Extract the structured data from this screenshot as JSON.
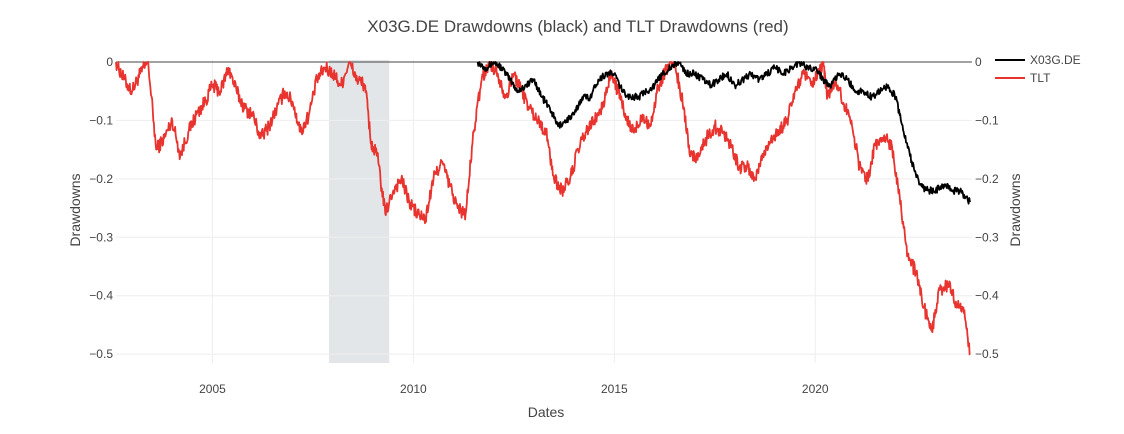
{
  "chart_data": {
    "type": "line",
    "title": "X03G.DE Drawdowns (black) and TLT Drawdowns (red)",
    "xlabel": "Dates",
    "ylabel": "Drawdowns",
    "ylabel_right": "Drawdowns",
    "xlim": [
      2002.6,
      2023.9
    ],
    "ylim": [
      -0.51,
      0.0
    ],
    "x_ticks": [
      {
        "value": 2005,
        "label": "2005"
      },
      {
        "value": 2010,
        "label": "2010"
      },
      {
        "value": 2015,
        "label": "2015"
      },
      {
        "value": 2020,
        "label": "2020"
      }
    ],
    "y_ticks": [
      {
        "value": 0,
        "label": "0"
      },
      {
        "value": -0.1,
        "label": "−0.1"
      },
      {
        "value": -0.2,
        "label": "−0.2"
      },
      {
        "value": -0.3,
        "label": "−0.3"
      },
      {
        "value": -0.4,
        "label": "−0.4"
      },
      {
        "value": -0.5,
        "label": "−0.5"
      }
    ],
    "grid": true,
    "legend_position": "top-right",
    "shaded_regions": [
      {
        "x0": 2007.9,
        "x1": 2009.4,
        "color": "#e3e6e9"
      }
    ],
    "series": [
      {
        "name": "TLT",
        "color": "#e8332e",
        "x": [
          2002.6,
          2002.8,
          2003.0,
          2003.2,
          2003.4,
          2003.6,
          2003.8,
          2004.0,
          2004.2,
          2004.4,
          2004.6,
          2004.8,
          2005.0,
          2005.2,
          2005.4,
          2005.6,
          2005.8,
          2006.0,
          2006.2,
          2006.4,
          2006.6,
          2006.8,
          2007.0,
          2007.2,
          2007.4,
          2007.6,
          2007.8,
          2008.0,
          2008.2,
          2008.4,
          2008.6,
          2008.8,
          2008.95,
          2009.1,
          2009.3,
          2009.5,
          2009.7,
          2009.9,
          2010.1,
          2010.3,
          2010.5,
          2010.7,
          2010.9,
          2011.1,
          2011.3,
          2011.5,
          2011.7,
          2011.9,
          2012.1,
          2012.3,
          2012.5,
          2012.7,
          2012.9,
          2013.1,
          2013.3,
          2013.5,
          2013.7,
          2013.9,
          2014.1,
          2014.3,
          2014.5,
          2014.7,
          2014.9,
          2015.1,
          2015.3,
          2015.5,
          2015.7,
          2015.9,
          2016.1,
          2016.3,
          2016.5,
          2016.7,
          2016.9,
          2017.1,
          2017.3,
          2017.5,
          2017.7,
          2017.9,
          2018.1,
          2018.3,
          2018.5,
          2018.7,
          2018.9,
          2019.1,
          2019.3,
          2019.5,
          2019.7,
          2019.9,
          2020.1,
          2020.2,
          2020.3,
          2020.5,
          2020.7,
          2020.9,
          2021.1,
          2021.3,
          2021.5,
          2021.7,
          2021.9,
          2022.1,
          2022.3,
          2022.5,
          2022.7,
          2022.9,
          2023.1,
          2023.3,
          2023.5,
          2023.7,
          2023.85
        ],
        "values": [
          0.0,
          -0.03,
          -0.05,
          -0.02,
          0.0,
          -0.15,
          -0.13,
          -0.1,
          -0.16,
          -0.12,
          -0.09,
          -0.07,
          -0.04,
          -0.05,
          -0.01,
          -0.05,
          -0.08,
          -0.09,
          -0.13,
          -0.11,
          -0.08,
          -0.05,
          -0.07,
          -0.12,
          -0.09,
          -0.03,
          -0.01,
          -0.02,
          -0.04,
          -0.0,
          -0.03,
          -0.04,
          -0.14,
          -0.16,
          -0.26,
          -0.22,
          -0.2,
          -0.24,
          -0.26,
          -0.27,
          -0.2,
          -0.17,
          -0.21,
          -0.25,
          -0.26,
          -0.12,
          -0.03,
          0.0,
          -0.02,
          -0.06,
          -0.02,
          -0.05,
          -0.08,
          -0.1,
          -0.12,
          -0.2,
          -0.22,
          -0.2,
          -0.15,
          -0.12,
          -0.1,
          -0.08,
          -0.02,
          -0.05,
          -0.1,
          -0.12,
          -0.09,
          -0.11,
          -0.04,
          -0.01,
          0.0,
          -0.07,
          -0.16,
          -0.16,
          -0.13,
          -0.11,
          -0.12,
          -0.14,
          -0.18,
          -0.18,
          -0.2,
          -0.16,
          -0.13,
          -0.12,
          -0.1,
          -0.05,
          -0.02,
          -0.04,
          -0.02,
          0.0,
          -0.06,
          -0.03,
          -0.07,
          -0.1,
          -0.18,
          -0.2,
          -0.14,
          -0.13,
          -0.14,
          -0.23,
          -0.33,
          -0.36,
          -0.42,
          -0.46,
          -0.39,
          -0.38,
          -0.41,
          -0.43,
          -0.5
        ]
      },
      {
        "name": "X03G.DE",
        "color": "#000000",
        "x": [
          2011.6,
          2011.8,
          2012.0,
          2012.2,
          2012.4,
          2012.6,
          2012.8,
          2013.0,
          2013.2,
          2013.4,
          2013.6,
          2013.8,
          2014.0,
          2014.2,
          2014.4,
          2014.6,
          2014.8,
          2015.0,
          2015.2,
          2015.4,
          2015.6,
          2015.8,
          2016.0,
          2016.2,
          2016.4,
          2016.6,
          2016.8,
          2017.0,
          2017.2,
          2017.4,
          2017.6,
          2017.8,
          2018.0,
          2018.2,
          2018.4,
          2018.6,
          2018.8,
          2019.0,
          2019.2,
          2019.4,
          2019.6,
          2019.8,
          2020.0,
          2020.2,
          2020.4,
          2020.6,
          2020.8,
          2021.0,
          2021.2,
          2021.4,
          2021.6,
          2021.8,
          2022.0,
          2022.2,
          2022.4,
          2022.6,
          2022.8,
          2023.0,
          2023.2,
          2023.4,
          2023.6,
          2023.85
        ],
        "values": [
          0.0,
          -0.01,
          0.0,
          -0.01,
          -0.03,
          -0.05,
          -0.04,
          -0.03,
          -0.06,
          -0.08,
          -0.11,
          -0.1,
          -0.09,
          -0.06,
          -0.06,
          -0.03,
          -0.02,
          -0.02,
          -0.05,
          -0.06,
          -0.06,
          -0.05,
          -0.04,
          -0.02,
          -0.01,
          -0.0,
          -0.02,
          -0.02,
          -0.03,
          -0.04,
          -0.03,
          -0.02,
          -0.04,
          -0.03,
          -0.02,
          -0.03,
          -0.02,
          -0.01,
          -0.02,
          -0.01,
          0.0,
          -0.01,
          -0.01,
          -0.03,
          -0.04,
          -0.02,
          -0.03,
          -0.05,
          -0.05,
          -0.06,
          -0.05,
          -0.04,
          -0.06,
          -0.12,
          -0.17,
          -0.21,
          -0.22,
          -0.22,
          -0.21,
          -0.22,
          -0.22,
          -0.24
        ]
      }
    ]
  }
}
